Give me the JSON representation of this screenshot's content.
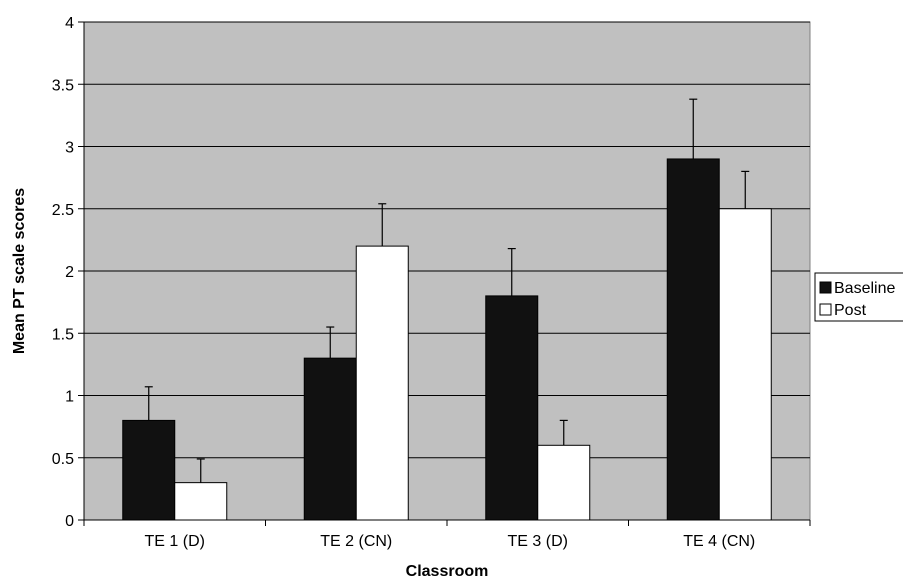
{
  "chart_data": {
    "type": "bar",
    "categories": [
      "TE 1 (D)",
      "TE 2 (CN)",
      "TE 3 (D)",
      "TE 4 (CN)"
    ],
    "series": [
      {
        "name": "Baseline",
        "values": [
          0.8,
          1.3,
          1.8,
          2.9
        ],
        "error": [
          0.27,
          0.25,
          0.38,
          0.48
        ],
        "color": "#111111"
      },
      {
        "name": "Post",
        "values": [
          0.3,
          2.2,
          0.6,
          2.5
        ],
        "error": [
          0.19,
          0.34,
          0.2,
          0.3
        ],
        "color": "#ffffff"
      }
    ],
    "title": "",
    "xlabel": "Classroom",
    "ylabel": "Mean PT scale scores",
    "ylim": [
      0,
      4
    ],
    "yticks": [
      "0",
      "0.5",
      "1",
      "1.5",
      "2",
      "2.5",
      "3",
      "3.5",
      "4"
    ],
    "grid": true,
    "legend_position": "right",
    "plot_background": "#c0c0c0"
  }
}
